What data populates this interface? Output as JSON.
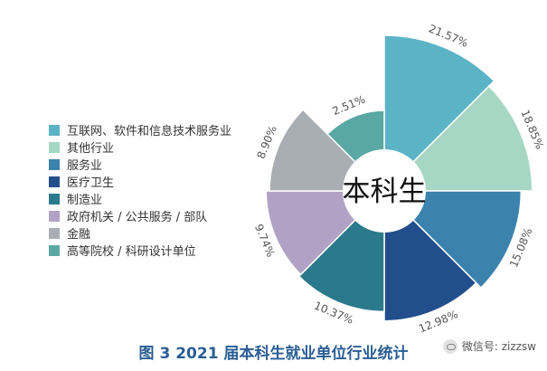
{
  "chart_data": {
    "type": "pie",
    "subtype": "nightingale-rose",
    "center_label": "本科生",
    "categories": [
      "互联网、软件和信息技术服务业",
      "其他行业",
      "服务业",
      "医疗卫生",
      "制造业",
      "政府机关 / 公共服务 / 部队",
      "金融",
      "高等院校 / 科研设计单位"
    ],
    "values": [
      21.57,
      18.85,
      15.08,
      12.98,
      10.37,
      9.74,
      8.9,
      2.51
    ],
    "data_labels": [
      "21.57%",
      "18.85%",
      "15.08%",
      "12.98%",
      "10.37%",
      "9.74%",
      "8.90%",
      "2.51%"
    ],
    "colors": [
      "#5bb3c6",
      "#a6d7c4",
      "#3b82ad",
      "#234e8c",
      "#2b7a8c",
      "#b1a2c5",
      "#a8aeb3",
      "#5aa8a3"
    ],
    "legend_position": "left"
  },
  "caption": "图 3 2021 届本科生就业单位行业统计",
  "watermark": "微信号: zizzsw",
  "icons": {
    "watermark": "wechat-icon"
  }
}
